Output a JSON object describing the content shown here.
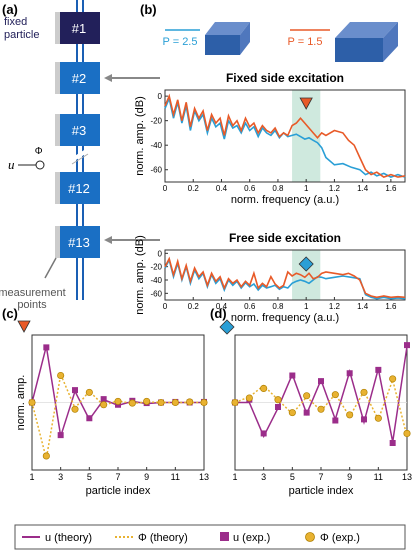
{
  "panel_labels": {
    "a": "(a)",
    "b": "(b)",
    "c": "(c)",
    "d": "(d)"
  },
  "chain": {
    "particles": [
      "#1",
      "#2",
      "#3",
      "#12",
      "#13"
    ],
    "fixed_label_line1": "fixed",
    "fixed_label_line2": "particle",
    "measurement_line1": "measurement",
    "measurement_line2": "points",
    "u_symbol": "u",
    "phi_symbol": "Φ"
  },
  "sample_labels": {
    "p_a": "P = 2.5",
    "p_b": "P = 1.5"
  },
  "colors": {
    "blue": "#2a9fd6",
    "orange": "#e85a28",
    "magenta": "#9b2d8a",
    "gold": "#e8b231",
    "band": "#cfe9de",
    "chain": "#1a5fb4",
    "fixed": "#22205a"
  },
  "markers": {
    "plot_top": "orange triangle",
    "plot_bottom": "blue diamond",
    "plot_c": "orange triangle",
    "plot_d": "blue diamond"
  },
  "chart_data": [
    {
      "type": "line",
      "id": "fixed",
      "title": "Fixed side excitation",
      "xlabel": "norm. frequency (a.u.)",
      "ylabel": "norm. amp. (dB)",
      "xlim": [
        0,
        1.7
      ],
      "ylim": [
        -70,
        5
      ],
      "xticks": [
        0,
        0.2,
        0.4,
        0.6,
        0.8,
        1,
        1.2,
        1.4,
        1.6
      ],
      "yticks": [
        0,
        -20,
        -40,
        -60
      ],
      "band": [
        0.9,
        1.1
      ],
      "series": [
        {
          "name": "P = 2.5",
          "color": "#2a9fd6",
          "x": [
            0,
            0.03,
            0.06,
            0.09,
            0.12,
            0.15,
            0.18,
            0.21,
            0.24,
            0.27,
            0.3,
            0.33,
            0.36,
            0.39,
            0.42,
            0.45,
            0.48,
            0.51,
            0.54,
            0.57,
            0.6,
            0.63,
            0.66,
            0.69,
            0.72,
            0.75,
            0.78,
            0.81,
            0.84,
            0.87,
            0.9,
            0.93,
            0.96,
            0.99,
            1.02,
            1.05,
            1.08,
            1.11,
            1.14,
            1.2,
            1.26,
            1.32,
            1.38,
            1.42,
            1.46,
            1.5,
            1.55,
            1.6,
            1.65,
            1.7
          ],
          "y": [
            -10,
            -2,
            -18,
            -5,
            -22,
            -8,
            -28,
            -12,
            -20,
            -15,
            -30,
            -18,
            -25,
            -22,
            -35,
            -20,
            -26,
            -24,
            -30,
            -22,
            -28,
            -25,
            -33,
            -26,
            -30,
            -32,
            -28,
            -34,
            -30,
            -33,
            -32,
            -31,
            -33,
            -35,
            -34,
            -36,
            -38,
            -42,
            -50,
            -56,
            -55,
            -58,
            -60,
            -64,
            -62,
            -65,
            -63,
            -66,
            -64,
            -66
          ]
        },
        {
          "name": "P = 1.5",
          "color": "#e85a28",
          "x": [
            0,
            0.03,
            0.06,
            0.09,
            0.12,
            0.15,
            0.18,
            0.21,
            0.24,
            0.27,
            0.3,
            0.33,
            0.36,
            0.39,
            0.42,
            0.45,
            0.48,
            0.51,
            0.54,
            0.57,
            0.6,
            0.63,
            0.66,
            0.69,
            0.72,
            0.75,
            0.78,
            0.81,
            0.84,
            0.87,
            0.9,
            0.93,
            0.96,
            0.99,
            1.02,
            1.05,
            1.08,
            1.11,
            1.14,
            1.2,
            1.26,
            1.3,
            1.34,
            1.38,
            1.42,
            1.46,
            1.5,
            1.55,
            1.6,
            1.65,
            1.7
          ],
          "y": [
            -8,
            0,
            -15,
            -3,
            -20,
            -5,
            -25,
            -10,
            -18,
            -12,
            -28,
            -15,
            -22,
            -18,
            -32,
            -16,
            -24,
            -20,
            -28,
            -18,
            -25,
            -22,
            -30,
            -24,
            -28,
            -30,
            -26,
            -33,
            -30,
            -32,
            -24,
            -22,
            -18,
            -22,
            -26,
            -30,
            -34,
            -30,
            -32,
            -28,
            -30,
            -36,
            -40,
            -50,
            -60,
            -64,
            -62,
            -66,
            -64,
            -66,
            -65
          ]
        }
      ]
    },
    {
      "type": "line",
      "id": "free",
      "title": "Free side excitation",
      "xlabel": "norm. frequency (a.u.)",
      "ylabel": "norm. amp. (dB)",
      "xlim": [
        0,
        1.7
      ],
      "ylim": [
        -70,
        5
      ],
      "xticks": [
        0,
        0.2,
        0.4,
        0.6,
        0.8,
        1,
        1.2,
        1.4,
        1.6
      ],
      "yticks": [
        0,
        -20,
        -40,
        -60
      ],
      "band": [
        0.9,
        1.1
      ],
      "series": [
        {
          "name": "P = 2.5",
          "color": "#2a9fd6",
          "x": [
            0,
            0.03,
            0.06,
            0.09,
            0.12,
            0.15,
            0.18,
            0.21,
            0.24,
            0.27,
            0.3,
            0.33,
            0.36,
            0.39,
            0.42,
            0.45,
            0.48,
            0.51,
            0.54,
            0.57,
            0.6,
            0.63,
            0.66,
            0.69,
            0.72,
            0.75,
            0.78,
            0.81,
            0.84,
            0.87,
            0.9,
            0.93,
            0.96,
            0.99,
            1.02,
            1.05,
            1.08,
            1.11,
            1.14,
            1.2,
            1.26,
            1.32,
            1.38,
            1.42,
            1.46,
            1.5,
            1.55,
            1.6,
            1.65,
            1.7
          ],
          "y": [
            -22,
            -10,
            -35,
            -15,
            -40,
            -20,
            -45,
            -25,
            -38,
            -30,
            -50,
            -32,
            -45,
            -38,
            -55,
            -40,
            -48,
            -42,
            -52,
            -44,
            -50,
            -46,
            -55,
            -48,
            -52,
            -50,
            -48,
            -54,
            -50,
            -52,
            -45,
            -42,
            -40,
            -42,
            -45,
            -40,
            -35,
            -36,
            -38,
            -36,
            -34,
            -36,
            -38,
            -62,
            -66,
            -68,
            -66,
            -68,
            -67,
            -68
          ]
        },
        {
          "name": "P = 1.5",
          "color": "#e85a28",
          "x": [
            0,
            0.03,
            0.06,
            0.09,
            0.12,
            0.15,
            0.18,
            0.21,
            0.24,
            0.27,
            0.3,
            0.33,
            0.36,
            0.39,
            0.42,
            0.45,
            0.48,
            0.51,
            0.54,
            0.57,
            0.6,
            0.63,
            0.66,
            0.69,
            0.72,
            0.75,
            0.78,
            0.81,
            0.84,
            0.87,
            0.9,
            0.93,
            0.96,
            0.99,
            1.02,
            1.05,
            1.08,
            1.11,
            1.14,
            1.2,
            1.26,
            1.3,
            1.34,
            1.38,
            1.42,
            1.46,
            1.5,
            1.55,
            1.6,
            1.65,
            1.7
          ],
          "y": [
            -20,
            -8,
            -32,
            -12,
            -38,
            -18,
            -42,
            -22,
            -35,
            -28,
            -48,
            -30,
            -42,
            -35,
            -52,
            -38,
            -45,
            -40,
            -50,
            -42,
            -48,
            -30,
            -52,
            -45,
            -50,
            -35,
            -46,
            -52,
            -48,
            -28,
            -34,
            -30,
            -32,
            -36,
            -30,
            -38,
            -36,
            -30,
            -28,
            -30,
            -32,
            -30,
            -34,
            -40,
            -60,
            -64,
            -66,
            -64,
            -66,
            -65,
            -66
          ]
        }
      ]
    },
    {
      "type": "line",
      "id": "c",
      "xlabel": "particle index",
      "ylabel": "norm. amp.",
      "xlim": [
        1,
        13
      ],
      "ylim": [
        -1.2,
        1.2
      ],
      "xticks": [
        1,
        3,
        5,
        7,
        9,
        11,
        13
      ],
      "categories": [
        1,
        2,
        3,
        4,
        5,
        6,
        7,
        8,
        9,
        10,
        11,
        12,
        13
      ],
      "series": [
        {
          "name": "u (theory)",
          "values": [
            0,
            1,
            -0.6,
            0.2,
            -0.3,
            0.05,
            -0.05,
            0.02,
            -0.02,
            0,
            0,
            0,
            0
          ]
        },
        {
          "name": "Φ (theory)",
          "values": [
            0,
            -1,
            0.5,
            -0.1,
            0.2,
            -0.05,
            0.03,
            -0.02,
            0.01,
            0,
            0,
            0,
            0
          ]
        },
        {
          "name": "u (exp.)",
          "values": [
            0,
            0.98,
            -0.58,
            0.22,
            -0.28,
            0.06,
            -0.04,
            0.03,
            -0.01,
            0,
            0.01,
            0,
            0.01
          ]
        },
        {
          "name": "Φ (exp.)",
          "values": [
            0,
            -0.95,
            0.48,
            -0.12,
            0.18,
            -0.04,
            0.02,
            -0.01,
            0.02,
            0,
            0,
            0.01,
            0
          ]
        }
      ]
    },
    {
      "type": "line",
      "id": "d",
      "xlabel": "particle index",
      "ylabel": "",
      "xlim": [
        1,
        13
      ],
      "ylim": [
        -1.2,
        1.2
      ],
      "xticks": [
        1,
        3,
        5,
        7,
        9,
        11,
        13
      ],
      "categories": [
        1,
        2,
        3,
        4,
        5,
        6,
        7,
        8,
        9,
        10,
        11,
        12,
        13
      ],
      "series": [
        {
          "name": "u (theory)",
          "values": [
            0,
            0,
            -0.6,
            -0.1,
            0.5,
            -0.2,
            0.4,
            -0.3,
            0.55,
            -0.35,
            0.6,
            -0.7,
            1
          ]
        },
        {
          "name": "Φ (theory)",
          "values": [
            0,
            0.1,
            0.3,
            0.05,
            -0.2,
            0.1,
            -0.15,
            0.15,
            -0.25,
            0.2,
            -0.3,
            0.4,
            -0.6
          ]
        },
        {
          "name": "u (exp.)",
          "values": [
            0,
            0.05,
            -0.55,
            -0.08,
            0.48,
            -0.18,
            0.38,
            -0.32,
            0.52,
            -0.3,
            0.58,
            -0.72,
            1.02
          ]
        },
        {
          "name": "Φ (exp.)",
          "values": [
            0,
            0.08,
            0.25,
            0.05,
            -0.18,
            0.12,
            -0.12,
            0.14,
            -0.22,
            0.18,
            -0.28,
            0.42,
            -0.55
          ]
        }
      ]
    }
  ],
  "legend": {
    "u_theory": "u (theory)",
    "phi_theory": "Φ (theory)",
    "u_exp": "u (exp.)",
    "phi_exp": "Φ (exp.)"
  }
}
